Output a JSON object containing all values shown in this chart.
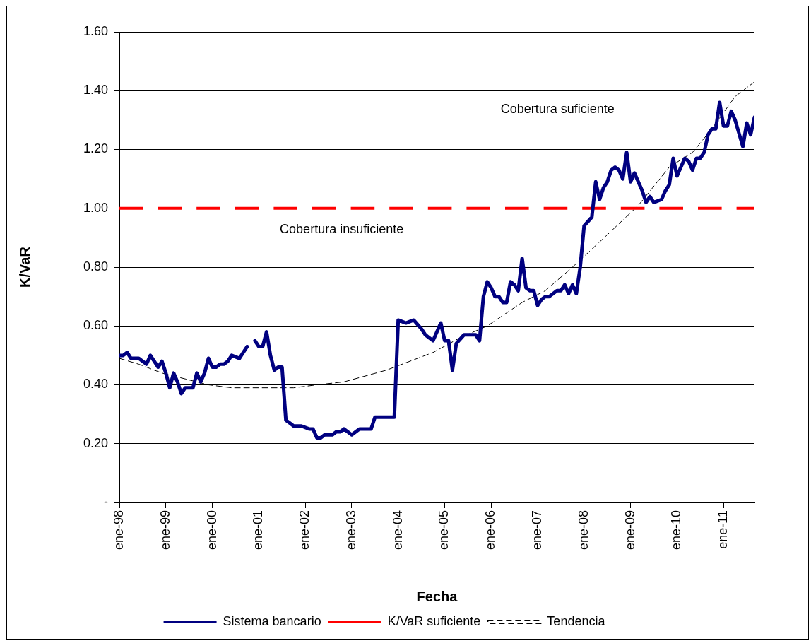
{
  "chart_data": {
    "type": "line",
    "xlabel": "Fecha",
    "ylabel": "K/VaR",
    "xlim": [
      "1998-01",
      "2011-09"
    ],
    "xticks": [
      {
        "value": "1998-01",
        "label": "ene-98"
      },
      {
        "value": "1999-01",
        "label": "ene-99"
      },
      {
        "value": "2000-01",
        "label": "ene-00"
      },
      {
        "value": "2001-01",
        "label": "ene-01"
      },
      {
        "value": "2002-01",
        "label": "ene-02"
      },
      {
        "value": "2003-01",
        "label": "ene-03"
      },
      {
        "value": "2004-01",
        "label": "ene-04"
      },
      {
        "value": "2005-01",
        "label": "ene-05"
      },
      {
        "value": "2006-01",
        "label": "ene-06"
      },
      {
        "value": "2007-01",
        "label": "ene-07"
      },
      {
        "value": "2008-01",
        "label": "ene-08"
      },
      {
        "value": "2009-01",
        "label": "ene-09"
      },
      {
        "value": "2010-01",
        "label": "ene-10"
      },
      {
        "value": "2011-01",
        "label": "ene-11"
      }
    ],
    "ylim": [
      0,
      1.6
    ],
    "yticks": [
      {
        "value": 0,
        "label": "-"
      },
      {
        "value": 0.2,
        "label": "0.20"
      },
      {
        "value": 0.4,
        "label": "0.40"
      },
      {
        "value": 0.6,
        "label": "0.60"
      },
      {
        "value": 0.8,
        "label": "0.80"
      },
      {
        "value": 1,
        "label": "1.00"
      },
      {
        "value": 1.2,
        "label": "1.20"
      },
      {
        "value": 1.4,
        "label": "1.40"
      },
      {
        "value": 1.6,
        "label": "1.60"
      }
    ],
    "grid": "y",
    "legend": "bottom",
    "marker": "none",
    "series": [
      {
        "name": "Sistema bancario",
        "color": "#000080",
        "line_style": "solid",
        "x": [
          "1998-01",
          "1998-02",
          "1998-03",
          "1998-04",
          "1998-06",
          "1998-08",
          "1998-09",
          "1998-10",
          "1998-11",
          "1998-12",
          "1999-01",
          "1999-02",
          "1999-03",
          "1999-04",
          "1999-05",
          "1999-06",
          "1999-07",
          "1999-08",
          "1999-09",
          "1999-10",
          "1999-11",
          "1999-12",
          "2000-01",
          "2000-02",
          "2000-03",
          "2000-04",
          "2000-05",
          "2000-06",
          "2000-08",
          "2000-09",
          "2000-10",
          "2000-11",
          "2000-12",
          "2001-01",
          "2001-02",
          "2001-03",
          "2001-04",
          "2001-05",
          "2001-06",
          "2001-07",
          "2001-08",
          "2001-09",
          "2001-10",
          "2001-12",
          "2002-02",
          "2002-03",
          "2002-04",
          "2002-05",
          "2002-06",
          "2002-08",
          "2002-09",
          "2002-10",
          "2002-11",
          "2003-01",
          "2003-03",
          "2003-04",
          "2003-06",
          "2003-07",
          "2003-09",
          "2003-10",
          "2003-12",
          "2004-01",
          "2004-03",
          "2004-05",
          "2004-07",
          "2004-08",
          "2004-09",
          "2004-10",
          "2004-12",
          "2005-01",
          "2005-02",
          "2005-03",
          "2005-04",
          "2005-06",
          "2005-07",
          "2005-09",
          "2005-10",
          "2005-11",
          "2005-12",
          "2006-01",
          "2006-02",
          "2006-03",
          "2006-04",
          "2006-05",
          "2006-06",
          "2006-07",
          "2006-08",
          "2006-09",
          "2006-10",
          "2006-11",
          "2006-12",
          "2007-01",
          "2007-02",
          "2007-03",
          "2007-04",
          "2007-06",
          "2007-07",
          "2007-08",
          "2007-09",
          "2007-10",
          "2007-11",
          "2007-12",
          "2008-01",
          "2008-03",
          "2008-04",
          "2008-05",
          "2008-06",
          "2008-07",
          "2008-08",
          "2008-09",
          "2008-10",
          "2008-11",
          "2008-12",
          "2009-01",
          "2009-02",
          "2009-04",
          "2009-05",
          "2009-06",
          "2009-07",
          "2009-09",
          "2009-10",
          "2009-11",
          "2009-12",
          "2010-01",
          "2010-03",
          "2010-04",
          "2010-05",
          "2010-06",
          "2010-07",
          "2010-08",
          "2010-09",
          "2010-10",
          "2010-11",
          "2010-12",
          "2011-01",
          "2011-02",
          "2011-03",
          "2011-04",
          "2011-06",
          "2011-07",
          "2011-08",
          "2011-09"
        ],
        "values": [
          0.5,
          0.5,
          0.51,
          0.49,
          0.49,
          0.47,
          0.5,
          0.48,
          0.46,
          0.48,
          0.44,
          0.39,
          0.44,
          0.41,
          0.37,
          0.39,
          0.39,
          0.39,
          0.44,
          0.41,
          0.44,
          0.49,
          0.46,
          0.46,
          0.47,
          0.47,
          0.48,
          0.5,
          0.49,
          0.51,
          0.53,
          null,
          0.55,
          0.53,
          0.53,
          0.58,
          0.5,
          0.45,
          0.46,
          0.46,
          0.28,
          0.27,
          0.26,
          0.26,
          0.25,
          0.25,
          0.22,
          0.22,
          0.23,
          0.23,
          0.24,
          0.24,
          0.25,
          0.23,
          0.25,
          0.25,
          0.25,
          0.29,
          0.29,
          0.29,
          0.29,
          0.62,
          0.61,
          0.62,
          0.59,
          0.57,
          0.56,
          0.55,
          0.61,
          0.55,
          0.55,
          0.45,
          0.54,
          0.57,
          0.57,
          0.57,
          0.55,
          0.7,
          0.75,
          0.73,
          0.7,
          0.7,
          0.68,
          0.68,
          0.75,
          0.74,
          0.72,
          0.83,
          0.73,
          0.72,
          0.72,
          0.67,
          0.69,
          0.7,
          0.7,
          0.72,
          0.72,
          0.74,
          0.71,
          0.74,
          0.71,
          0.8,
          0.94,
          0.97,
          1.09,
          1.03,
          1.07,
          1.09,
          1.13,
          1.14,
          1.13,
          1.1,
          1.19,
          1.09,
          1.12,
          1.06,
          1.02,
          1.04,
          1.02,
          1.03,
          1.06,
          1.08,
          1.17,
          1.11,
          1.17,
          1.16,
          1.13,
          1.17,
          1.17,
          1.19,
          1.25,
          1.27,
          1.27,
          1.36,
          1.28,
          1.28,
          1.33,
          1.3,
          1.21,
          1.29,
          1.25,
          1.31
        ]
      },
      {
        "name": "Tendencia",
        "color": "#000000",
        "line_style": "dashed",
        "x": [
          "1998-01",
          "1998-06",
          "1998-12",
          "1999-06",
          "1999-12",
          "2000-06",
          "2000-11",
          "2001-10",
          "2002-04",
          "2002-11",
          "2003-10",
          "2004-10",
          "2005-05",
          "2005-12",
          "2006-09",
          "2007-03",
          "2007-10",
          "2008-07",
          "2009-03",
          "2009-11",
          "2010-05",
          "2010-10",
          "2011-04",
          "2011-09"
        ],
        "values": [
          0.49,
          0.47,
          0.44,
          0.42,
          0.4,
          0.39,
          0.39,
          0.39,
          0.4,
          0.41,
          0.45,
          0.51,
          0.56,
          0.6,
          0.68,
          0.72,
          0.8,
          0.91,
          1.01,
          1.14,
          1.19,
          1.27,
          1.38,
          1.43
        ]
      }
    ],
    "ref_lines": [
      {
        "axis": "y",
        "value": 1,
        "label": "K/VaR suficiente",
        "color": "#ff0000",
        "line_style": "dashed"
      }
    ],
    "annotations": [
      "Cobertura suficiente",
      "Cobertura insuficiente"
    ]
  }
}
